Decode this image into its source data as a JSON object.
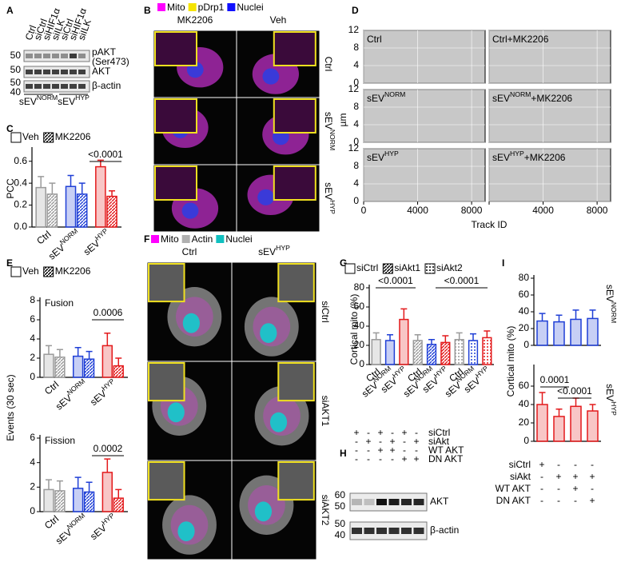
{
  "panels": {
    "letters": [
      "A",
      "B",
      "C",
      "D",
      "E",
      "F",
      "G",
      "H",
      "I"
    ]
  },
  "blot_a": {
    "lanes": [
      "Ctrl",
      "siCtrl",
      "siHIF1α",
      "siILK",
      "siCtrl",
      "siHIF1α",
      "siILK"
    ],
    "markers": [
      50,
      50,
      50,
      40
    ],
    "bands": [
      "pAKT",
      "(Ser473)",
      "AKT",
      "β-actin"
    ],
    "groups": [
      {
        "base": "sEV",
        "sup": "NORM"
      },
      {
        "base": "sEV",
        "sup": "HYP"
      }
    ]
  },
  "images_b": {
    "legend": [
      "Mito",
      "pDrp1",
      "Nuclei"
    ],
    "columns": [
      "MK2206",
      "Veh"
    ],
    "rows": [
      {
        "base": "Ctrl"
      },
      {
        "base": "sEV",
        "sup": "NORM"
      },
      {
        "base": "sEV",
        "sup": "HYP"
      }
    ]
  },
  "images_f": {
    "legend": [
      "Mito",
      "Actin",
      "Nuclei"
    ],
    "columns": [
      {
        "base": "Ctrl"
      },
      {
        "base": "sEV",
        "sup": "HYP"
      }
    ],
    "rows": [
      "siCtrl",
      "siAKT1",
      "siAKT2"
    ]
  },
  "blot_h": {
    "conditions": [
      "siCtrl",
      "siAkt",
      "WT AKT",
      "DN AKT"
    ],
    "cells": [
      [
        "+",
        "-",
        "+",
        "-",
        "+",
        "-"
      ],
      [
        "-",
        "+",
        "-",
        "+",
        "-",
        "+"
      ],
      [
        "-",
        "-",
        "+",
        "+",
        "-",
        "-"
      ],
      [
        "-",
        "-",
        "-",
        "-",
        "+",
        "+"
      ]
    ],
    "markers": [
      60,
      50,
      50,
      40
    ],
    "bands": [
      "AKT",
      "β-actin"
    ]
  },
  "table_i": {
    "conditions": [
      "siCtrl",
      "siAkt",
      "WT AKT",
      "DN AKT"
    ],
    "cells": [
      [
        "+",
        "-",
        "-",
        "-"
      ],
      [
        "-",
        "+",
        "+",
        "+"
      ],
      [
        "-",
        "-",
        "+",
        "-"
      ],
      [
        "-",
        "-",
        "-",
        "+"
      ]
    ]
  },
  "chart_data": [
    {
      "type": "bar",
      "ylabel": "PCC",
      "categories": [
        {
          "base": "Ctrl"
        },
        {
          "base": "sEV",
          "sup": "NORM"
        },
        {
          "base": "sEV",
          "sup": "HYP"
        }
      ],
      "category_colors": [
        "#9a9a9a",
        "#1f3fd6",
        "#e31a1c"
      ],
      "series": [
        {
          "name": "Veh",
          "values": [
            0.36,
            0.37,
            0.55
          ],
          "errors": [
            0.1,
            0.1,
            0.06
          ]
        },
        {
          "name": "MK2206",
          "values": [
            0.3,
            0.3,
            0.28
          ],
          "errors": [
            0.1,
            0.1,
            0.05
          ]
        }
      ],
      "ylim": [
        0,
        0.7
      ],
      "yticks": [
        {
          "value": 0,
          "label": "0.0"
        },
        {
          "value": 0.2,
          "label": "0.2"
        },
        {
          "value": 0.4,
          "label": "0.4"
        },
        {
          "value": 0.6,
          "label": "0.6"
        }
      ],
      "annotations": [
        "<0.0001"
      ]
    },
    {
      "type": "scatter",
      "ylabel": "µm",
      "xlabel": "Track ID",
      "panels": [
        {
          "base": "Ctrl"
        },
        {
          "base": "Ctrl+MK2206"
        },
        {
          "base": "sEV",
          "sup": "NORM"
        },
        {
          "base": "sEV",
          "sup": "NORM",
          "tail": "+MK2206"
        },
        {
          "base": "sEV",
          "sup": "HYP"
        },
        {
          "base": "sEV",
          "sup": "HYP",
          "tail": "+MK2206"
        }
      ],
      "xlim": [
        0,
        9000
      ],
      "xticks": [
        0,
        4000,
        8000
      ],
      "ylim": [
        0,
        12
      ],
      "yticks": [
        0,
        4,
        8,
        12
      ],
      "grid": true
    },
    {
      "type": "bar",
      "title": "Fusion",
      "ylabel": "Events (30 sec)",
      "categories": [
        {
          "base": "Ctrl"
        },
        {
          "base": "sEV",
          "sup": "NORM"
        },
        {
          "base": "sEV",
          "sup": "HYP"
        }
      ],
      "category_colors": [
        "#9a9a9a",
        "#1f3fd6",
        "#e31a1c"
      ],
      "series": [
        {
          "name": "Veh",
          "values": [
            2.4,
            2.2,
            3.3
          ],
          "errors": [
            0.9,
            0.9,
            1.3
          ]
        },
        {
          "name": "MK2206",
          "values": [
            2.1,
            1.9,
            1.2
          ],
          "errors": [
            0.8,
            0.8,
            0.8
          ]
        }
      ],
      "ylim": [
        0,
        8
      ],
      "yticks": [
        0,
        2,
        4,
        6,
        8
      ],
      "annotations": [
        "0.0006"
      ]
    },
    {
      "type": "bar",
      "title": "Fission",
      "categories": [
        {
          "base": "Ctrl"
        },
        {
          "base": "sEV",
          "sup": "NORM"
        },
        {
          "base": "sEV",
          "sup": "HYP"
        }
      ],
      "category_colors": [
        "#9a9a9a",
        "#1f3fd6",
        "#e31a1c"
      ],
      "series": [
        {
          "name": "Veh",
          "values": [
            1.8,
            1.9,
            3.2
          ],
          "errors": [
            0.8,
            0.9,
            1.1
          ]
        },
        {
          "name": "MK2206",
          "values": [
            1.7,
            1.6,
            1.1
          ],
          "errors": [
            0.8,
            0.8,
            0.7
          ]
        }
      ],
      "ylim": [
        0,
        6
      ],
      "yticks": [
        0,
        2,
        4,
        6
      ],
      "annotations": [
        "0.0002"
      ]
    },
    {
      "type": "bar",
      "ylabel": "Cortical mito (%)",
      "grouped": false,
      "categories": [
        {
          "base": "Ctrl"
        },
        {
          "base": "sEV",
          "sup": "NORM"
        },
        {
          "base": "sEV",
          "sup": "HYP"
        },
        {
          "base": "Ctrl"
        },
        {
          "base": "sEV",
          "sup": "NORM"
        },
        {
          "base": "sEV",
          "sup": "HYP"
        },
        {
          "base": "Ctrl"
        },
        {
          "base": "sEV",
          "sup": "NORM"
        },
        {
          "base": "sEV",
          "sup": "HYP"
        }
      ],
      "category_colors": [
        "#9a9a9a",
        "#1f3fd6",
        "#e31a1c",
        "#9a9a9a",
        "#1f3fd6",
        "#e31a1c",
        "#9a9a9a",
        "#1f3fd6",
        "#e31a1c"
      ],
      "series": [
        {
          "name": "siCtrl",
          "values": [
            26,
            25,
            47,
            null,
            null,
            null,
            null,
            null,
            null
          ],
          "errors": [
            7,
            6,
            11,
            null,
            null,
            null,
            null,
            null,
            null
          ]
        },
        {
          "name": "siAkt1",
          "values": [
            null,
            null,
            null,
            25,
            21,
            23,
            null,
            null,
            null
          ],
          "errors": [
            null,
            null,
            null,
            6,
            5,
            7,
            null,
            null,
            null
          ]
        },
        {
          "name": "siAkt2",
          "values": [
            null,
            null,
            null,
            null,
            null,
            null,
            26,
            25,
            28
          ],
          "errors": [
            null,
            null,
            null,
            null,
            null,
            null,
            7,
            7,
            7
          ]
        }
      ],
      "ylim": [
        0,
        80
      ],
      "yticks": [
        0,
        20,
        40,
        60,
        80
      ],
      "annotations": [
        "<0.0001",
        "<0.0001"
      ]
    },
    {
      "type": "bar",
      "ylabel": "Cortical mito (%)",
      "side_label": {
        "base": "sEV",
        "sup": "NORM"
      },
      "color": "#1f3fd6",
      "values": [
        29,
        28,
        31,
        32
      ],
      "errors": [
        9,
        8,
        11,
        10
      ],
      "ylim": [
        0,
        80
      ],
      "yticks": [
        0,
        20,
        40,
        60,
        80
      ]
    },
    {
      "type": "bar",
      "side_label": {
        "base": "sEV",
        "sup": "HYP"
      },
      "color": "#e31a1c",
      "values": [
        40,
        27,
        38,
        33
      ],
      "errors": [
        13,
        8,
        9,
        7
      ],
      "ylim": [
        0,
        80
      ],
      "yticks": [
        0,
        20,
        40,
        60
      ],
      "annotations": [
        "0.0001",
        "<0.0001"
      ]
    }
  ]
}
